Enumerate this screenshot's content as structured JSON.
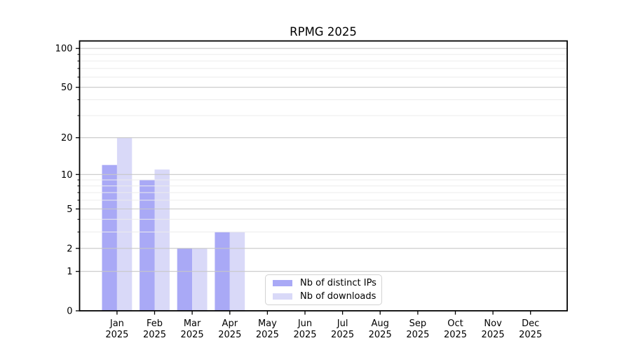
{
  "chart_data": {
    "type": "bar",
    "title": "RPMG 2025",
    "months": [
      "Jan",
      "Feb",
      "Mar",
      "Apr",
      "May",
      "Jun",
      "Jul",
      "Aug",
      "Sep",
      "Oct",
      "Nov",
      "Dec"
    ],
    "year": "2025",
    "series": [
      {
        "name": "Nb of distinct IPs",
        "color": "#a9a9f6",
        "values": [
          12,
          9,
          2,
          3,
          0,
          0,
          0,
          0,
          0,
          0,
          0,
          0
        ]
      },
      {
        "name": "Nb of downloads",
        "color": "#d9d9f8",
        "values": [
          20,
          11,
          2,
          3,
          0,
          0,
          0,
          0,
          0,
          0,
          0,
          0
        ]
      }
    ],
    "yscale": "log1p",
    "ylim": [
      0,
      112
    ],
    "y_major_ticks": [
      0,
      1,
      2,
      5,
      10,
      20,
      50,
      100
    ],
    "y_minor_ticks": [
      3,
      4,
      6,
      7,
      8,
      9,
      30,
      40,
      60,
      70,
      80,
      90
    ],
    "grid": {
      "major_color": "#c7c7c7",
      "minor_color": "#ececec",
      "on": true
    },
    "axis_color": "#000000",
    "legend_position": "inside lower-center-left"
  }
}
